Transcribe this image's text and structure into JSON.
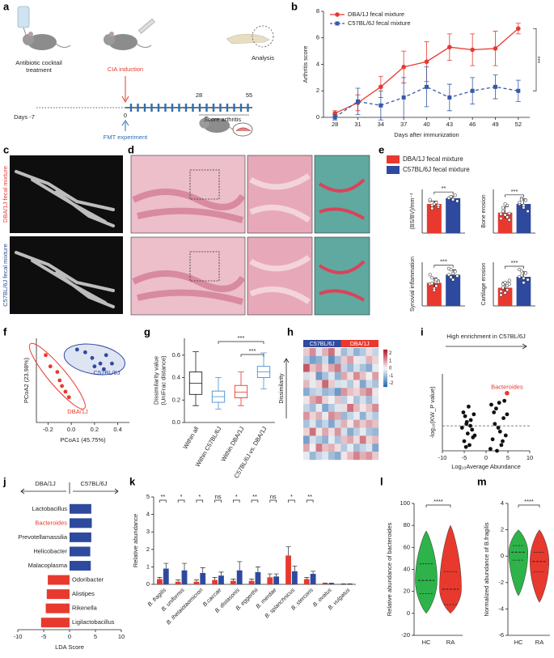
{
  "panel_labels": [
    "a",
    "b",
    "c",
    "d",
    "e",
    "f",
    "g",
    "h",
    "i",
    "j",
    "k",
    "l",
    "m"
  ],
  "timeline": {
    "antibiotic": [
      "Antibiotic cocktail",
      "treatment"
    ],
    "cia": "CIA induction",
    "analysis": "Analysis",
    "days": [
      "Days -7",
      "0",
      "28",
      "55"
    ],
    "fmt": "FMT experiment",
    "score": "Score arthritis"
  },
  "images": {
    "c_labels": [
      "DBA/1J fecal mixture",
      "C57BL/6J fecal mixture"
    ]
  },
  "chart_data": [
    {
      "type": "line",
      "xlabel": "Days after immunization",
      "ylabel": "Arthritis score",
      "x": [
        28,
        31,
        34,
        37,
        40,
        43,
        46,
        49,
        52
      ],
      "xlim": [
        26.5,
        53.5
      ],
      "xticks": [
        28,
        31,
        34,
        37,
        40,
        43,
        46,
        49,
        52
      ],
      "ylim": [
        0,
        8
      ],
      "yticks": [
        0,
        2,
        4,
        6,
        8
      ],
      "annotation": "***",
      "series": [
        {
          "name": "DBA/1J fecal mixture",
          "color": "#e8392e",
          "marker": "circle",
          "linestyle": "solid",
          "values": [
            0.3,
            1.1,
            2.3,
            3.8,
            4.2,
            5.3,
            5.1,
            5.2,
            6.7
          ],
          "errors": [
            0.2,
            0.6,
            0.8,
            1.2,
            1.5,
            1.0,
            1.2,
            1.3,
            0.4
          ]
        },
        {
          "name": "C57BL/6J fecal mixture",
          "color": "#3759a8",
          "marker": "square",
          "linestyle": "dashed",
          "values": [
            0,
            1.2,
            0.9,
            1.5,
            2.3,
            1.5,
            2.0,
            2.3,
            2.0
          ],
          "errors": [
            0.2,
            1.0,
            1.1,
            1.5,
            1.5,
            1.0,
            1.0,
            0.9,
            0.8
          ]
        }
      ]
    },
    {
      "type": "bar",
      "small_multiples": true,
      "categories": [
        "(BS/BV)/mm⁻¹",
        "Bone erosion",
        "Synovial inflammation",
        "Cartilage erosion"
      ],
      "ylims": [
        [
          0,
          30
        ],
        [
          0,
          6
        ],
        [
          0,
          7
        ],
        [
          0,
          6
        ]
      ],
      "annotations": [
        "**",
        "***",
        "***",
        "***"
      ],
      "series": [
        {
          "name": "DBA/1J fecal mixture",
          "color": "#e8392e",
          "values": [
            20,
            2.8,
            3.7,
            2.5
          ],
          "errors": [
            2,
            0.8,
            0.8,
            0.8
          ],
          "points": [
            [
              22,
              19,
              20,
              21,
              18,
              23,
              17,
              20,
              21,
              19
            ],
            [
              2.0,
              3.5,
              2.5,
              3.8,
              1.8,
              2.6,
              3.0,
              4.0,
              2.2,
              2.7
            ],
            [
              3.5,
              4.5,
              2.8,
              3.2,
              4.0,
              5.0,
              3.6,
              2.5,
              4.2,
              3.8
            ],
            [
              2.0,
              3.0,
              1.8,
              2.8,
              3.5,
              1.5,
              2.5,
              3.2,
              2.2,
              3.0
            ]
          ]
        },
        {
          "name": "C57BL/6J fecal mixture",
          "color": "#2e4a9e",
          "values": [
            24,
            4.0,
            5.0,
            4.0
          ],
          "errors": [
            1.5,
            0.7,
            0.8,
            0.7
          ],
          "points": [
            [
              24,
              25,
              23,
              26,
              22,
              24,
              25,
              23
            ],
            [
              4.0,
              4.8,
              3.5,
              4.5,
              3.0,
              4.2,
              4.6,
              3.8
            ],
            [
              5.0,
              5.8,
              4.2,
              5.5,
              4.8,
              6.0,
              4.6,
              5.2
            ],
            [
              4.0,
              4.8,
              3.2,
              4.5,
              3.6,
              5.0,
              4.2,
              3.8
            ]
          ]
        }
      ]
    },
    {
      "type": "scatter",
      "xlabel": "PCoA1 (45.75%)",
      "ylabel": "PCoA2 (23.98%)",
      "xlim": [
        -0.3,
        0.5
      ],
      "xticks": [
        -0.2,
        {
          "value": 0,
          "label": "0.0"
        },
        0.2,
        0.4
      ],
      "ylim": [
        -0.3,
        0.3
      ],
      "series": [
        {
          "name": "DBA/1J",
          "color": "#e8392e",
          "x": [
            -0.22,
            -0.18,
            -0.12,
            -0.1,
            -0.08,
            -0.05,
            -0.02
          ],
          "y": [
            0.18,
            0.1,
            0.06,
            0.0,
            -0.04,
            -0.08,
            -0.12
          ]
        },
        {
          "name": "C57BL/6J",
          "color": "#2e4a9e",
          "x": [
            0.05,
            0.12,
            0.18,
            0.2,
            0.25,
            0.28,
            0.3,
            0.35
          ],
          "y": [
            0.22,
            0.2,
            0.16,
            0.1,
            0.12,
            0.08,
            0.18,
            0.12
          ]
        }
      ]
    },
    {
      "type": "box",
      "ylabel": [
        "Dissimilarity value",
        "(UniFrac distance)"
      ],
      "side_label": "Dissimilarity",
      "categories": [
        "Within all",
        "Within C57BL/6J",
        "Within DBA/1J",
        "C57BL/6J vs. DBA/1J"
      ],
      "colors": [
        "#222222",
        "#4b8fd0",
        "#e8392e",
        "#4b8fd0"
      ],
      "ylim": [
        0,
        0.75
      ],
      "yticks": [
        {
          "value": 0,
          "label": "0.0"
        },
        0.2,
        0.4,
        0.6
      ],
      "min": [
        0.15,
        0.12,
        0.15,
        0.3
      ],
      "q1": [
        0.25,
        0.18,
        0.22,
        0.4
      ],
      "median": [
        0.35,
        0.23,
        0.27,
        0.45
      ],
      "q3": [
        0.45,
        0.28,
        0.33,
        0.5
      ],
      "max": [
        0.63,
        0.4,
        0.45,
        0.62
      ],
      "annotations": [
        "***",
        "***"
      ]
    },
    {
      "type": "heatmap",
      "groups": [
        "C57BL/6J",
        "DBA/1J"
      ],
      "group_colors": [
        "#2e4a9e",
        "#e8392e"
      ],
      "zlim": [
        -2.5,
        2.5
      ],
      "colorbar_ticks": [
        2,
        1,
        0,
        -1,
        -2
      ],
      "values": [
        [
          0.5,
          1.2,
          -0.3,
          0.8,
          1.5,
          0.2,
          -1.0,
          -0.5,
          -1.2,
          -0.8,
          0.3,
          -0.6
        ],
        [
          -0.8,
          -1.5,
          -1.2,
          -0.5,
          -1.8,
          -1.0,
          0.5,
          1.0,
          0.2,
          -0.3,
          0.8,
          0.4
        ],
        [
          1.8,
          0.6,
          1.0,
          0.3,
          0.9,
          1.4,
          -0.6,
          -1.1,
          -0.4,
          -0.9,
          -1.3,
          -0.2
        ],
        [
          -0.4,
          0.2,
          -1.6,
          -0.9,
          -0.3,
          -1.2,
          0.9,
          0.3,
          1.2,
          0.6,
          0.1,
          1.0
        ],
        [
          0.7,
          -0.2,
          0.4,
          1.6,
          0.5,
          -0.4,
          -0.3,
          -0.8,
          0.2,
          -1.4,
          -0.5,
          -0.9
        ],
        [
          -1.3,
          -0.7,
          -0.5,
          -1.1,
          -0.9,
          -1.6,
          1.1,
          0.6,
          0.4,
          0.9,
          1.3,
          0.2
        ],
        [
          0.2,
          0.9,
          1.3,
          0.4,
          -0.1,
          0.6,
          -0.7,
          0.1,
          -0.9,
          -0.4,
          -1.0,
          -0.3
        ],
        [
          -0.6,
          -1.0,
          -0.2,
          -1.4,
          -0.8,
          -0.3,
          0.3,
          1.5,
          0.7,
          0.2,
          0.6,
          1.2
        ],
        [
          1.1,
          0.4,
          0.8,
          -0.2,
          1.2,
          0.9,
          -1.1,
          -0.6,
          -0.2,
          -1.2,
          -0.4,
          -0.8
        ],
        [
          -0.9,
          -0.3,
          -1.1,
          -0.6,
          -1.4,
          -0.5,
          0.8,
          0.2,
          1.0,
          0.5,
          0.9,
          0.6
        ],
        [
          0.4,
          1.5,
          0.2,
          0.9,
          0.3,
          1.1,
          -0.4,
          -1.3,
          -0.7,
          -0.2,
          -0.9,
          -1.1
        ],
        [
          -1.5,
          -0.4,
          -0.8,
          -1.2,
          -0.2,
          -0.9,
          0.6,
          0.9,
          0.3,
          1.4,
          0.4,
          0.7
        ],
        [
          0.9,
          0.1,
          1.4,
          0.6,
          0.8,
          0.3,
          -0.8,
          -0.2,
          -1.0,
          -0.6,
          -0.3,
          -1.4
        ],
        [
          -0.2,
          -1.1,
          -0.6,
          -0.3,
          -1.0,
          -1.3,
          0.2,
          0.7,
          1.3,
          0.8,
          1.1,
          0.5
        ]
      ]
    },
    {
      "type": "scatter",
      "subtitle": "High enrichment in C57BL/6J",
      "xlabel": "Log₁₀Average Abundance",
      "ylabel": "-log₁₀(KW_P value)",
      "xlim": [
        -10,
        10
      ],
      "xticks": [
        -10,
        -5,
        0,
        5,
        10
      ],
      "ylim": [
        0,
        4
      ],
      "threshold": 1.3,
      "series": [
        {
          "color": "#111111",
          "x": [
            -5.5,
            -5,
            -4.8,
            -4.5,
            -4.2,
            -4,
            -3.8,
            -3.5,
            -3.2,
            -3,
            -2.8,
            -5.2,
            -4.6,
            -3.6,
            -2.6,
            -4.4,
            1,
            1.5,
            2,
            2.3,
            2.5,
            3,
            3.2,
            3.5,
            4,
            4.2,
            4.5,
            1.8,
            2.8,
            3.8,
            1.2,
            4.8
          ],
          "y": [
            1.2,
            0.5,
            1.8,
            1.4,
            0.9,
            2.3,
            0.3,
            1.6,
            1.1,
            0.7,
            1.9,
            2.0,
            0.2,
            1.3,
            0.8,
            1.5,
            0.1,
            0.6,
            1.4,
            2.2,
            0.0,
            2.5,
            1.0,
            0.3,
            1.7,
            2.6,
            0.8,
            2.0,
            1.2,
            0.5,
            2.4,
            1.9
          ]
        }
      ],
      "annotations": [
        {
          "text": "Bacteroides",
          "x": 4.8,
          "y": 3.0,
          "color": "#e8392e"
        }
      ]
    },
    {
      "type": "hbar",
      "groups": [
        "DBA/1J",
        "C57BL/6J"
      ],
      "xlabel": "LDA Score",
      "xlim": [
        -10,
        10
      ],
      "xticks": [
        -10,
        -5,
        0,
        5,
        10
      ],
      "categories": [
        "Lactobacillus",
        "Bacteroides",
        "Prevotellamassilia",
        "Helicobacter",
        "Malacoplasma",
        "Odoribacter",
        "Alistipes",
        "Rikenella",
        "Ligilactobacillus"
      ],
      "values": [
        4.2,
        4.3,
        4.2,
        4.0,
        4.1,
        -4.2,
        -4.4,
        -4.6,
        -5.5
      ],
      "positive_color": "#2e4a9e",
      "negative_color": "#e8392e",
      "label_colors": [
        "#222222",
        "#e8392e",
        "#222222",
        "#222222",
        "#222222",
        "#222222",
        "#222222",
        "#222222",
        "#222222"
      ]
    },
    {
      "type": "bar",
      "ylabel": "Relative abundance",
      "ylim": [
        0,
        5
      ],
      "yticks": [
        0,
        1,
        2,
        3,
        4,
        5
      ],
      "categories": [
        "B. fragilis",
        "B. uniformis",
        "B. thetaiotaomicron",
        "B.caccae",
        "B. distasonis",
        "B. eggerthii",
        "B. merdae",
        "B. splanchnicus",
        "B. stercoris",
        "B. ovatus",
        "B. vulgatus"
      ],
      "significance": [
        "**",
        "*",
        "*",
        "ns",
        "*",
        "**",
        "ns",
        "*",
        "**",
        null,
        null
      ],
      "series": [
        {
          "color": "#e8392e",
          "values": [
            0.3,
            0.15,
            0.15,
            0.25,
            0.2,
            0.2,
            0.4,
            1.65,
            0.3,
            0.05,
            0.02
          ],
          "errors": [
            0.1,
            0.1,
            0.1,
            0.15,
            0.1,
            0.1,
            0.2,
            0.5,
            0.1,
            0.02,
            0.01
          ]
        },
        {
          "color": "#2e4a9e",
          "values": [
            0.9,
            0.8,
            0.65,
            0.5,
            0.8,
            0.7,
            0.45,
            0.75,
            0.6,
            0.05,
            0.02
          ],
          "errors": [
            0.3,
            0.4,
            0.3,
            0.2,
            0.5,
            0.3,
            0.15,
            0.3,
            0.15,
            0.02,
            0.01
          ]
        }
      ]
    },
    {
      "type": "violin",
      "ylabel": "Relative abundance of bacteroides",
      "categories": [
        "HC",
        "RA"
      ],
      "colors": [
        "#2db34a",
        "#e8392e"
      ],
      "ylim": [
        -20,
        100
      ],
      "yticks": [
        -20,
        0,
        20,
        40,
        60,
        80,
        100
      ],
      "annotation": "****",
      "min": [
        0,
        0
      ],
      "q1": [
        18,
        8
      ],
      "median": [
        30,
        22
      ],
      "q3": [
        45,
        38
      ],
      "max": [
        75,
        80
      ]
    },
    {
      "type": "violin",
      "ylabel": "Normalized abundance of B.fragilis",
      "categories": [
        "HC",
        "RA"
      ],
      "colors": [
        "#2db34a",
        "#e8392e"
      ],
      "ylim": [
        -6,
        4
      ],
      "yticks": [
        -6,
        -4,
        -2,
        0,
        2,
        4
      ],
      "annotation": "****",
      "min": [
        -3,
        -3.5
      ],
      "q1": [
        -0.3,
        -1.2
      ],
      "median": [
        0.3,
        -0.4
      ],
      "q3": [
        0.8,
        0.3
      ],
      "max": [
        2,
        2
      ]
    }
  ]
}
